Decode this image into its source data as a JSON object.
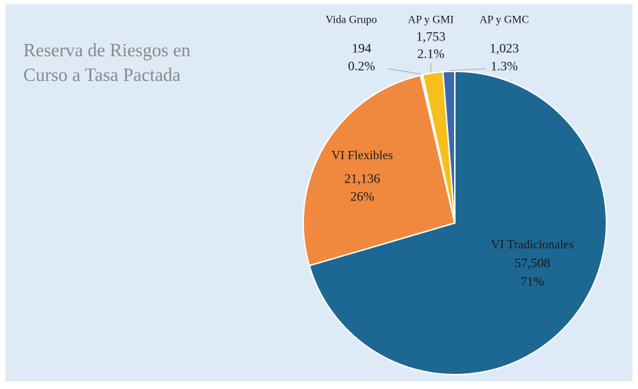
{
  "chart_data": {
    "type": "pie",
    "title": [
      "Reserva de Riesgos en",
      "Curso a Tasa Pactada"
    ],
    "categories": [
      "VI Tradicionales",
      "VI Flexibles",
      "Vida Grupo",
      "AP y GMI",
      "AP y GMC"
    ],
    "values": [
      57508,
      21136,
      194,
      1753,
      1023
    ],
    "value_labels": [
      "57,508",
      "21,136",
      "194",
      "1,753",
      "1,023"
    ],
    "percentages": [
      71,
      26,
      0.2,
      2.1,
      1.3
    ],
    "percentage_labels": [
      "71%",
      "26%",
      "0.2%",
      "2.1%",
      "1.3%"
    ],
    "colors": [
      "#1d6793",
      "#f0883e",
      "#ffffff",
      "#f6bf1c",
      "#3b68b1"
    ]
  }
}
